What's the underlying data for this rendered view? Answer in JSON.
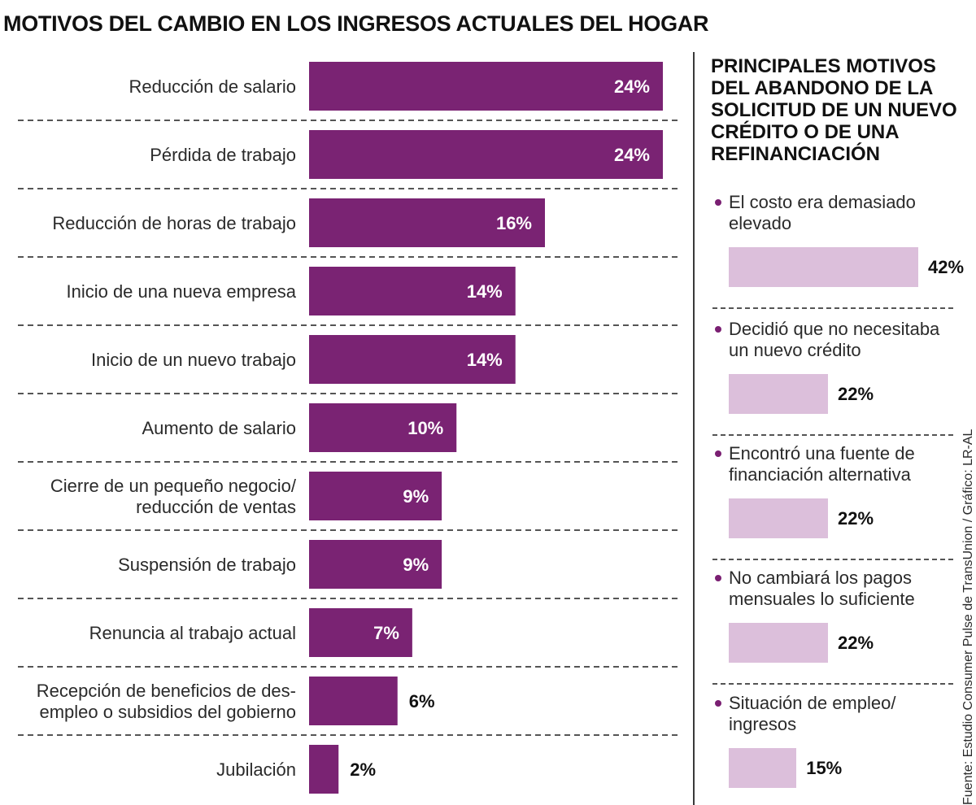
{
  "chart_data": [
    {
      "type": "bar",
      "orientation": "horizontal",
      "title": "MOTIVOS DEL CAMBIO EN LOS INGRESOS ACTUALES DEL HOGAR",
      "categories": [
        "Reducción de salario",
        "Pérdida de trabajo",
        "Reducción de horas de trabajo",
        "Inicio de una nueva empresa",
        "Inicio de un nuevo trabajo",
        "Aumento de salario",
        "Cierre de un pequeño negocio/\nreducción de ventas",
        "Suspensión de trabajo",
        "Renuncia al trabajo actual",
        "Recepción de beneficios de des-\nempleo o subsidios del gobierno",
        "Jubilación"
      ],
      "values": [
        24,
        24,
        16,
        14,
        14,
        10,
        9,
        9,
        7,
        6,
        2
      ],
      "value_labels": [
        "24%",
        "24%",
        "16%",
        "14%",
        "14%",
        "10%",
        "9%",
        "9%",
        "7%",
        "6%",
        "2%"
      ],
      "unit": "%",
      "xlim": [
        0,
        24
      ],
      "color": "#7a2373"
    },
    {
      "type": "bar",
      "orientation": "horizontal",
      "title": "PRINCIPALES MOTIVOS DEL ABANDONO DE LA SOLICITUD DE UN NUEVO CRÉDITO O DE UNA REFINANCIACIÓN",
      "categories": [
        "El costo era demasiado elevado",
        "Decidió que no necesitaba un nuevo crédito",
        "Encontró una fuente de financiación alternativa",
        "No cambiará los pagos mensuales lo suficiente",
        "Situación de empleo/ ingresos"
      ],
      "values": [
        42,
        22,
        22,
        22,
        15
      ],
      "value_labels": [
        "42%",
        "22%",
        "22%",
        "22%",
        "15%"
      ],
      "unit": "%",
      "xlim": [
        0,
        42
      ],
      "color": "#dcbfdb"
    }
  ],
  "source": "Fuente: Estudio Consumer Pulse de TransUnion / Gráfico: LR-AL",
  "colors": {
    "primary_bar": "#7a2373",
    "secondary_bar": "#dcbfdb",
    "bullet": "#7a1f72"
  }
}
